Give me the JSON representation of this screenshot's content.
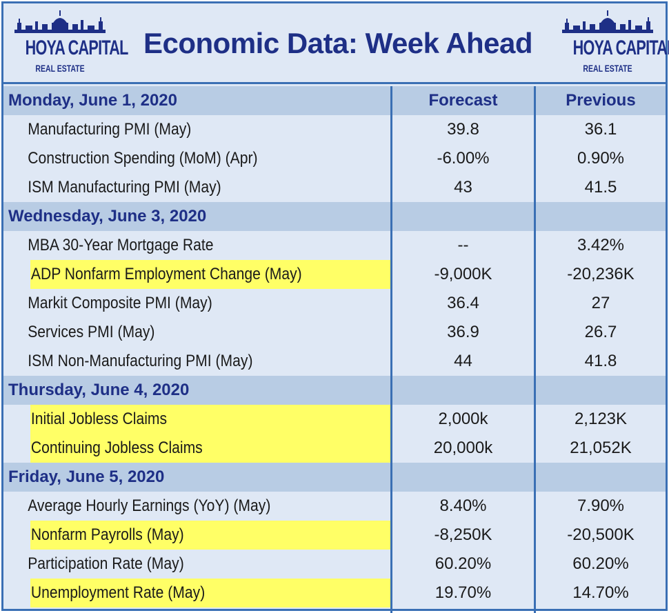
{
  "header": {
    "title": "Economic Data: Week Ahead",
    "logo_main": "HOYA CAPITAL",
    "logo_sub": "REAL ESTATE"
  },
  "columns": {
    "forecast": "Forecast",
    "previous": "Previous"
  },
  "colors": {
    "border": "#3a6fb4",
    "section_bg": "#b8cce4",
    "row_bg": "#dfe8f5",
    "highlight": "#ffff66",
    "title": "#1e2f86"
  },
  "sections": [
    {
      "date": "Monday, June 1, 2020",
      "items": [
        {
          "name": "Manufacturing PMI (May)",
          "forecast": "39.8",
          "previous": "36.1",
          "highlight": false
        },
        {
          "name": "Construction Spending (MoM) (Apr)",
          "forecast": "-6.00%",
          "previous": "0.90%",
          "highlight": false
        },
        {
          "name": "ISM Manufacturing PMI (May)",
          "forecast": "43",
          "previous": "41.5",
          "highlight": false
        }
      ]
    },
    {
      "date": "Wednesday, June 3, 2020",
      "items": [
        {
          "name": "MBA 30-Year Mortgage Rate",
          "forecast": "--",
          "previous": "3.42%",
          "highlight": false
        },
        {
          "name": "ADP Nonfarm Employment Change (May)",
          "forecast": "-9,000K",
          "previous": "-20,236K",
          "highlight": true
        },
        {
          "name": "Markit Composite PMI (May)",
          "forecast": "36.4",
          "previous": "27",
          "highlight": false
        },
        {
          "name": "Services PMI (May)",
          "forecast": "36.9",
          "previous": "26.7",
          "highlight": false
        },
        {
          "name": "ISM Non-Manufacturing PMI (May)",
          "forecast": "44",
          "previous": "41.8",
          "highlight": false
        }
      ]
    },
    {
      "date": "Thursday, June 4, 2020",
      "items": [
        {
          "name": "Initial Jobless Claims",
          "forecast": "2,000k",
          "previous": "2,123K",
          "highlight": true
        },
        {
          "name": "Continuing Jobless Claims",
          "forecast": "20,000k",
          "previous": "21,052K",
          "highlight": true
        }
      ]
    },
    {
      "date": "Friday, June 5, 2020",
      "items": [
        {
          "name": "Average Hourly Earnings (YoY) (May)",
          "forecast": "8.40%",
          "previous": "7.90%",
          "highlight": false
        },
        {
          "name": "Nonfarm Payrolls (May)",
          "forecast": "-8,250K",
          "previous": "-20,500K",
          "highlight": true
        },
        {
          "name": "Participation Rate (May)",
          "forecast": "60.20%",
          "previous": "60.20%",
          "highlight": false
        },
        {
          "name": "Unemployment Rate (May)",
          "forecast": "19.70%",
          "previous": "14.70%",
          "highlight": true
        }
      ]
    }
  ]
}
